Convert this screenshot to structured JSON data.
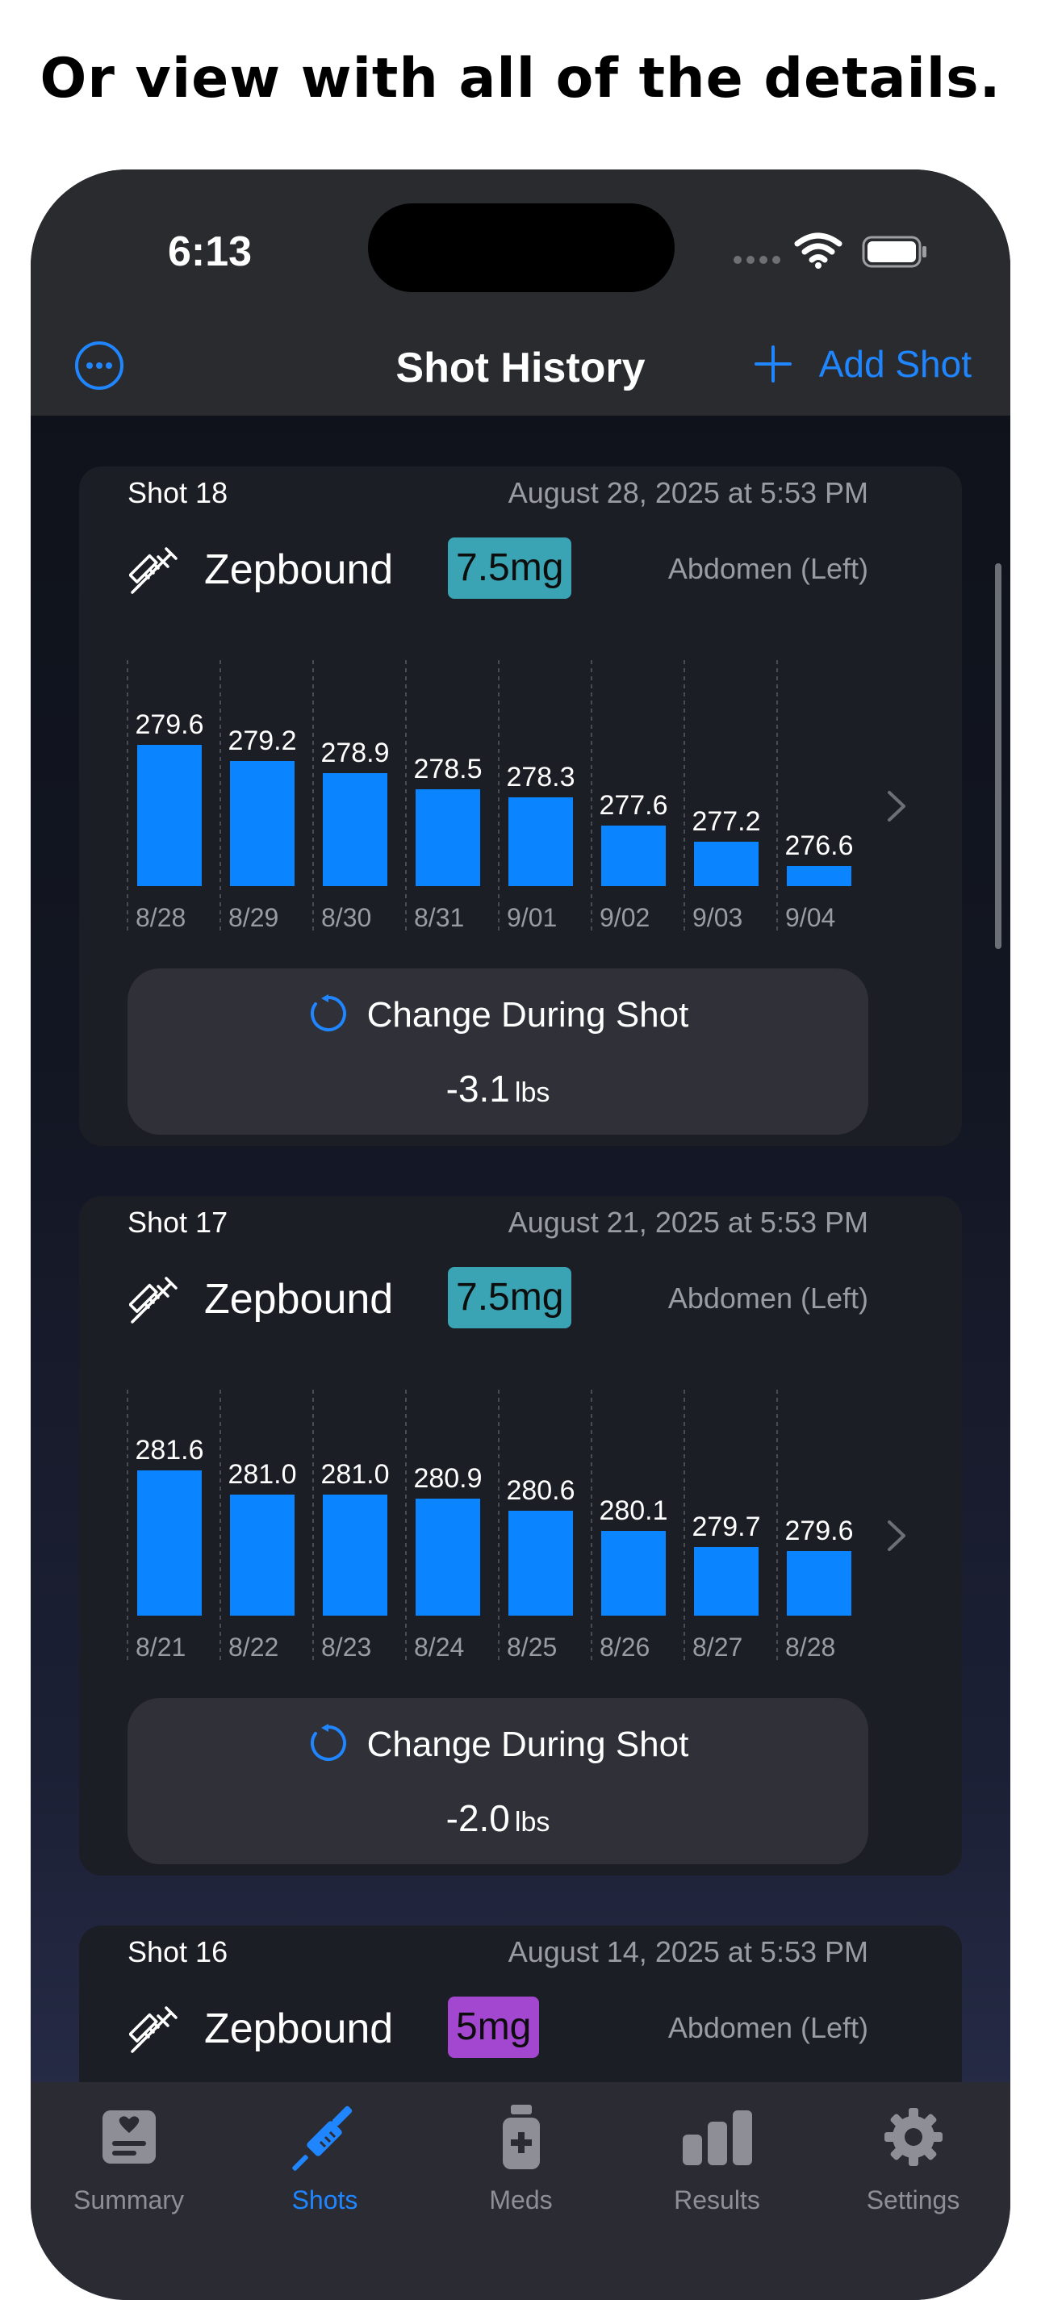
{
  "headline": "Or view with all of the details.",
  "status": {
    "time": "6:13"
  },
  "nav": {
    "title": "Shot History",
    "add_label": "Add Shot"
  },
  "shots": [
    {
      "label": "Shot 18",
      "date": "August 28, 2025 at 5:53 PM",
      "medication": "Zepbound",
      "dose": "7.5mg",
      "dose_color": "#3aa4b5",
      "site": "Abdomen (Left)",
      "change_label": "Change During Shot",
      "change_value": "-3.1",
      "change_unit": "lbs",
      "chart_data": {
        "type": "bar",
        "categories": [
          "8/28",
          "8/29",
          "8/30",
          "8/31",
          "9/01",
          "9/02",
          "9/03",
          "9/04"
        ],
        "values": [
          279.6,
          279.2,
          278.9,
          278.5,
          278.3,
          277.6,
          277.2,
          276.6
        ],
        "data_labels": [
          "279.6",
          "279.2",
          "278.9",
          "278.5",
          "278.3",
          "277.6",
          "277.2",
          "276.6"
        ],
        "ylim": [
          276.1,
          280.1
        ],
        "bar_color": "#0a84ff",
        "grid": true
      }
    },
    {
      "label": "Shot 17",
      "date": "August 21, 2025 at 5:53 PM",
      "medication": "Zepbound",
      "dose": "7.5mg",
      "dose_color": "#3aa4b5",
      "site": "Abdomen (Left)",
      "change_label": "Change During Shot",
      "change_value": "-2.0",
      "change_unit": "lbs",
      "chart_data": {
        "type": "bar",
        "categories": [
          "8/21",
          "8/22",
          "8/23",
          "8/24",
          "8/25",
          "8/26",
          "8/27",
          "8/28"
        ],
        "values": [
          281.6,
          281.0,
          281.0,
          280.9,
          280.6,
          280.1,
          279.7,
          279.6
        ],
        "data_labels": [
          "281.6",
          "281.0",
          "281.0",
          "280.9",
          "280.6",
          "280.1",
          "279.7",
          "279.6"
        ],
        "ylim": [
          278.0,
          282.0
        ],
        "bar_color": "#0a84ff",
        "grid": true
      }
    },
    {
      "label": "Shot 16",
      "date": "August 14, 2025 at 5:53 PM",
      "medication": "Zepbound",
      "dose": "5mg",
      "dose_color": "#a347d0",
      "site": "Abdomen (Left)"
    }
  ],
  "tabs": [
    {
      "label": "Summary",
      "icon": "summary-card-icon",
      "active": false
    },
    {
      "label": "Shots",
      "icon": "syringe-icon",
      "active": true
    },
    {
      "label": "Meds",
      "icon": "medicine-bottle-icon",
      "active": false
    },
    {
      "label": "Results",
      "icon": "bar-chart-icon",
      "active": false
    },
    {
      "label": "Settings",
      "icon": "gear-icon",
      "active": false
    }
  ],
  "colors": {
    "accent": "#1f86ff",
    "card": "#1c1e25",
    "tabbar": "#2b2c33"
  }
}
